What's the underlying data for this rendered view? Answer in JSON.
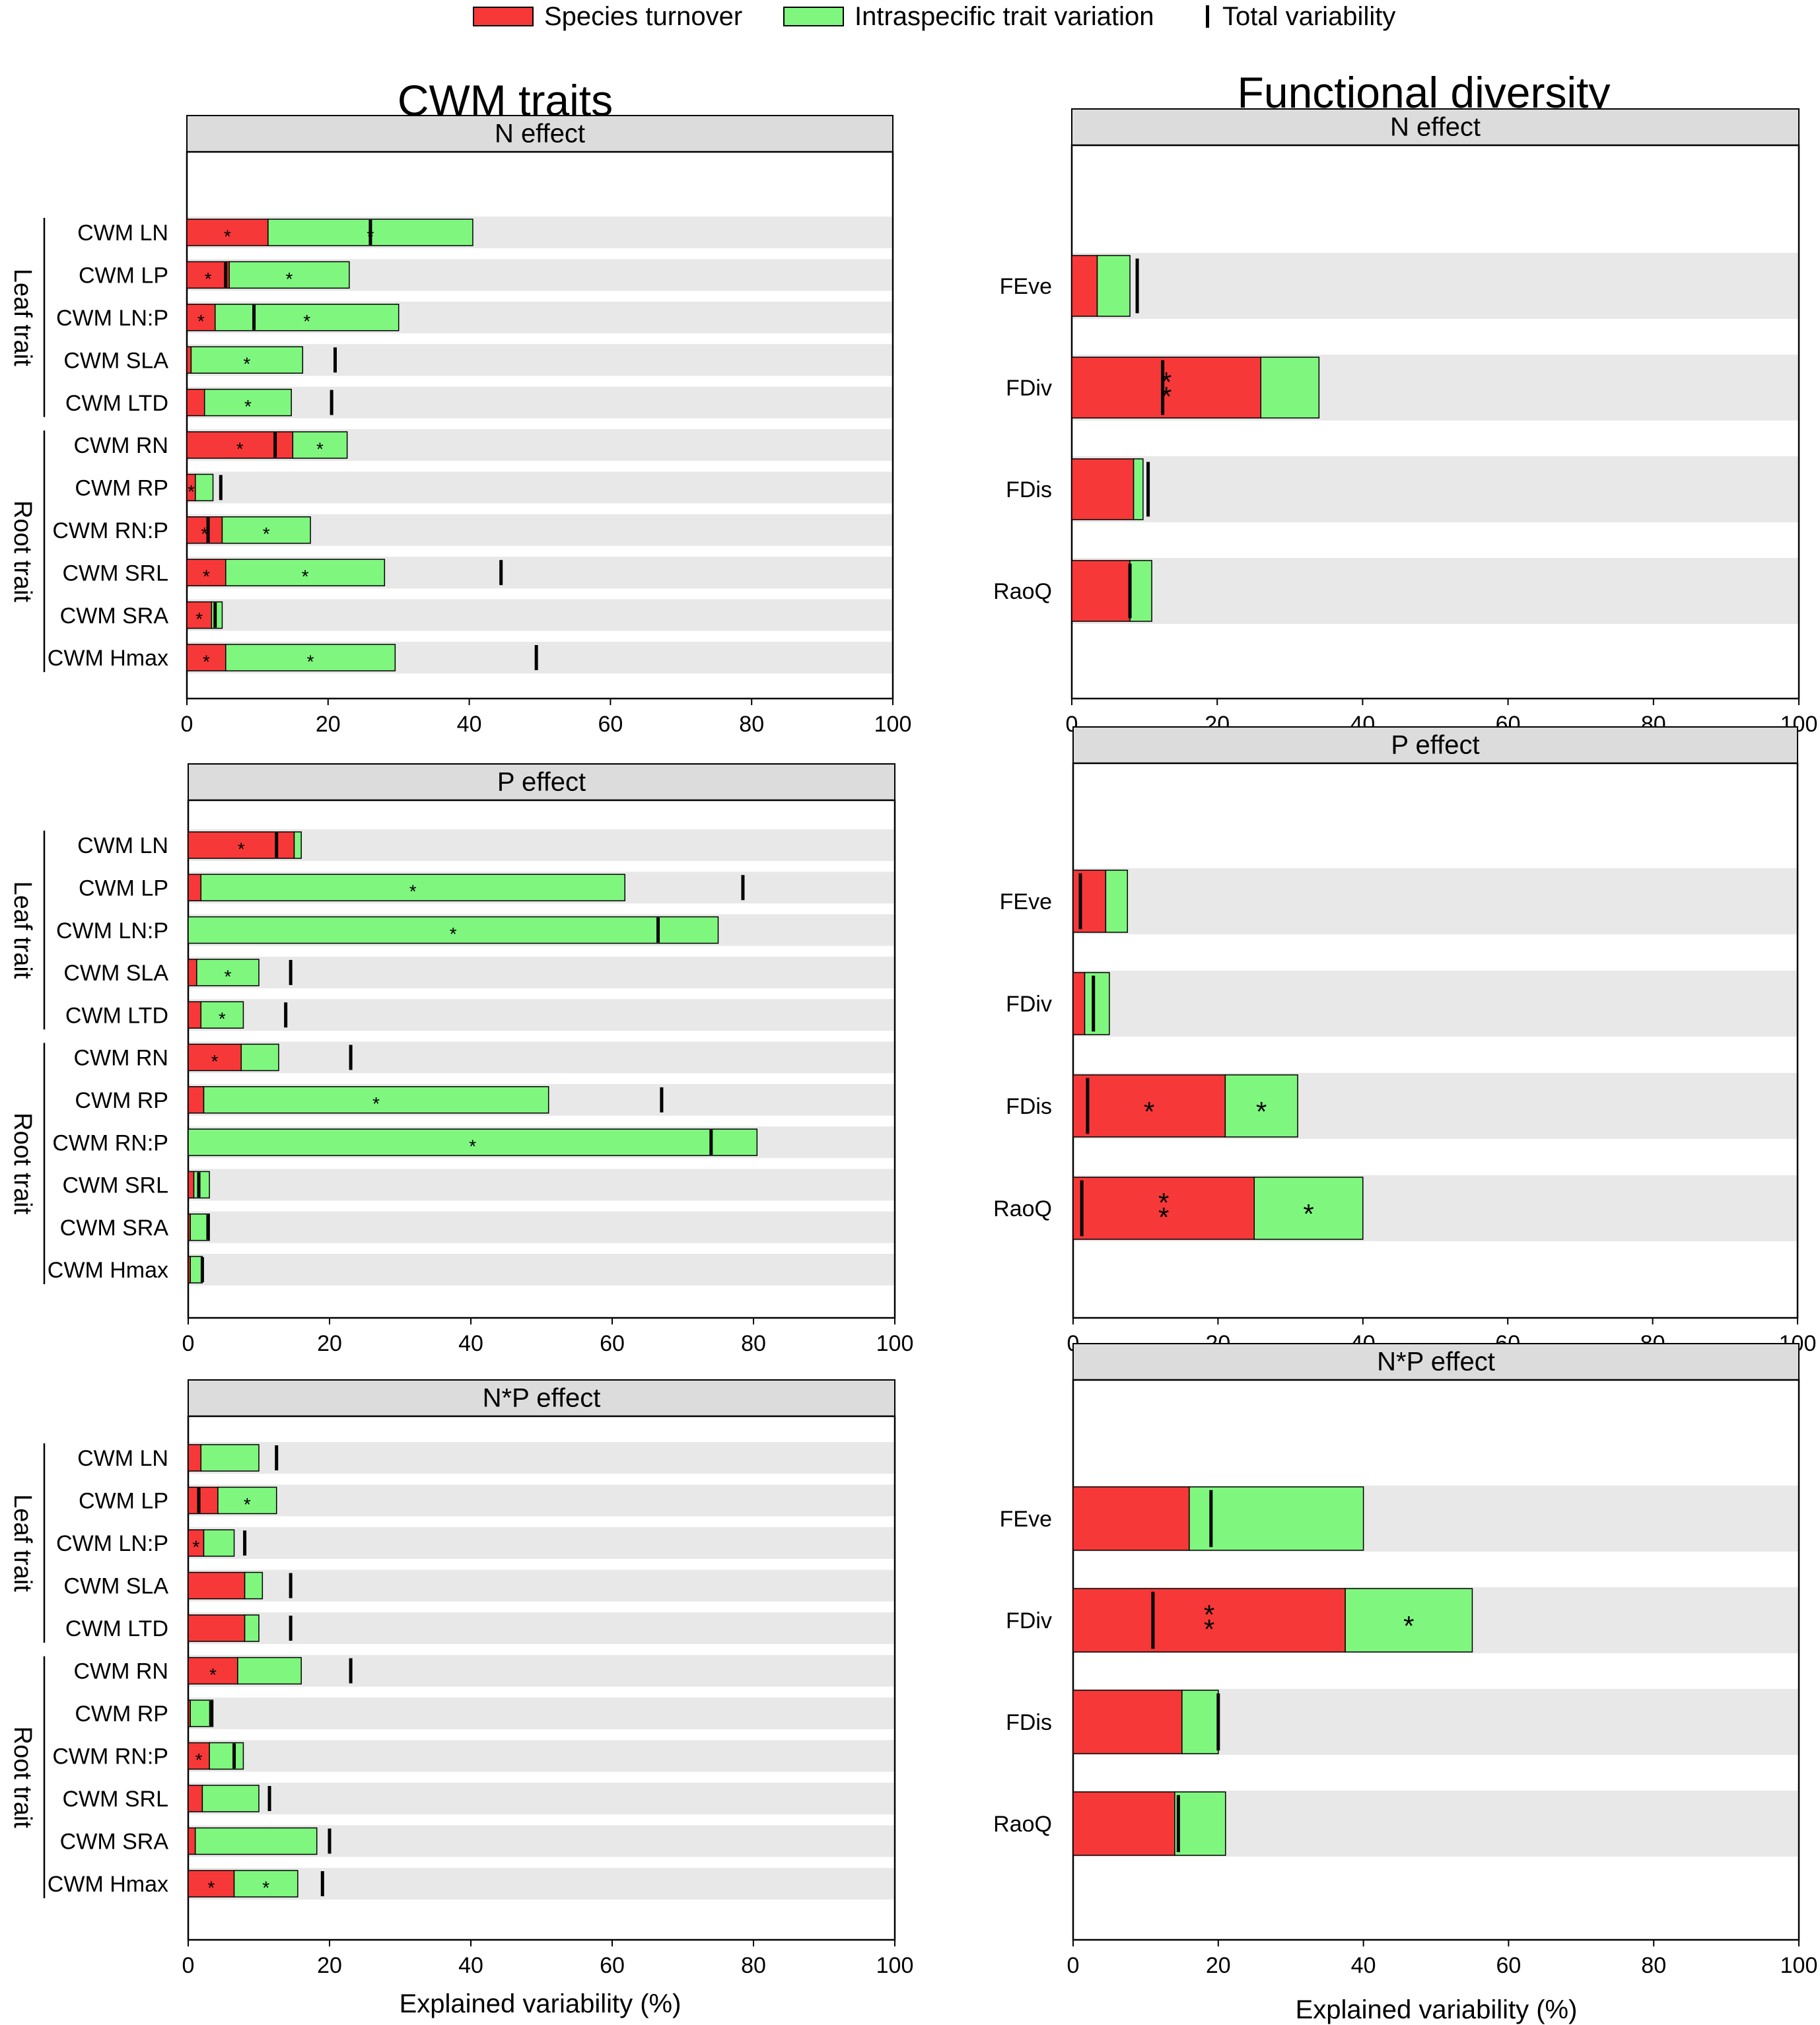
{
  "legend": {
    "turnover_label": "Species turnover",
    "itv_label": "Intraspecific trait variation",
    "total_label": "Total variability"
  },
  "colors": {
    "turnover": "#f73838",
    "itv": "#7ff77f",
    "row_bg": "#e8e8e8",
    "strip_bg": "#dcdcdc"
  },
  "column_titles": {
    "left": "CWM traits",
    "right": "Functional diversity"
  },
  "group_labels": {
    "leaf": "Leaf trait",
    "root": "Root trait"
  },
  "x_axis_label_left": "Explained variability (%)",
  "x_axis_label_right": "Explained variability (%)",
  "chart_data": [
    {
      "type": "bar",
      "stacked": true,
      "orientation": "horizontal",
      "title": "N effect",
      "column": "CWM traits",
      "xlabel": "",
      "xlim": [
        0,
        100
      ],
      "xticks": [
        "0",
        "20",
        "40",
        "60",
        "80",
        "100"
      ],
      "categories": [
        "CWM LN",
        "CWM LP",
        "CWM LN:P",
        "CWM SLA",
        "CWM LTD",
        "CWM RN",
        "CWM RP",
        "CWM RN:P",
        "CWM SRL",
        "CWM SRA",
        "CWM Hmax"
      ],
      "series": [
        {
          "name": "Species turnover",
          "values": [
            11.5,
            6,
            4,
            0.6,
            2.5,
            15,
            1.2,
            5,
            5.5,
            3.5,
            5.5
          ],
          "stars": [
            "*",
            "*",
            "*",
            "",
            "",
            "*",
            "*",
            "*",
            "*",
            "*",
            "*"
          ]
        },
        {
          "name": "Intraspecific trait variation",
          "values": [
            29,
            17,
            26,
            15.8,
            12.3,
            7.7,
            2.5,
            12.5,
            22.5,
            1.5,
            24
          ],
          "stars": [
            "*",
            "*",
            "*",
            "*",
            "*",
            "*",
            "",
            "*",
            "*",
            "",
            "*"
          ]
        }
      ],
      "total_variability": [
        26,
        5.5,
        9.5,
        21,
        20.5,
        12.5,
        4.8,
        3,
        44.5,
        4,
        49.5
      ]
    },
    {
      "type": "bar",
      "stacked": true,
      "orientation": "horizontal",
      "title": "P effect",
      "column": "CWM traits",
      "xlabel": "",
      "xlim": [
        0,
        100
      ],
      "xticks": [
        "0",
        "20",
        "40",
        "60",
        "80",
        "100"
      ],
      "categories": [
        "CWM LN",
        "CWM LP",
        "CWM LN:P",
        "CWM SLA",
        "CWM LTD",
        "CWM RN",
        "CWM RP",
        "CWM RN:P",
        "CWM SRL",
        "CWM SRA",
        "CWM Hmax"
      ],
      "series": [
        {
          "name": "Species turnover",
          "values": [
            15,
            1.8,
            0,
            1.2,
            1.8,
            7.5,
            2.2,
            0,
            0.8,
            0.3,
            0.3
          ],
          "stars": [
            "*",
            "",
            "",
            "",
            "",
            "*",
            "",
            "",
            "",
            "",
            ""
          ]
        },
        {
          "name": "Intraspecific trait variation",
          "values": [
            1,
            60,
            75,
            8.8,
            6,
            5.3,
            48.8,
            80.5,
            2.2,
            2.7,
            1.7
          ],
          "stars": [
            "",
            "*",
            "*",
            "*",
            "*",
            "",
            "*",
            "*",
            "",
            "",
            ""
          ]
        }
      ],
      "total_variability": [
        12.5,
        78.5,
        66.5,
        14.5,
        13.8,
        23,
        67,
        74,
        1.5,
        2.8,
        2
      ]
    },
    {
      "type": "bar",
      "stacked": true,
      "orientation": "horizontal",
      "title": "N*P effect",
      "column": "CWM traits",
      "xlabel": "Explained variability (%)",
      "xlim": [
        0,
        100
      ],
      "xticks": [
        "0",
        "20",
        "40",
        "60",
        "80",
        "100"
      ],
      "categories": [
        "CWM LN",
        "CWM LP",
        "CWM LN:P",
        "CWM SLA",
        "CWM LTD",
        "CWM RN",
        "CWM RP",
        "CWM RN:P",
        "CWM SRL",
        "CWM SRA",
        "CWM Hmax"
      ],
      "series": [
        {
          "name": "Species turnover",
          "values": [
            1.8,
            4.2,
            2.2,
            8,
            8,
            7,
            0.3,
            3,
            2,
            1,
            6.5
          ],
          "stars": [
            "",
            "",
            "*",
            "",
            "",
            "*",
            "",
            "*",
            "",
            "",
            "*"
          ]
        },
        {
          "name": "Intraspecific trait variation",
          "values": [
            8.2,
            8.3,
            4.3,
            2.5,
            2,
            9,
            3.2,
            4.8,
            8,
            17.2,
            9
          ],
          "stars": [
            "",
            "*",
            "",
            "",
            "",
            "",
            "",
            "",
            "",
            "",
            "*"
          ]
        }
      ],
      "total_variability": [
        12.5,
        1.5,
        8,
        14.5,
        14.5,
        23,
        3.2,
        6.5,
        11.5,
        20,
        19
      ]
    },
    {
      "type": "bar",
      "stacked": true,
      "orientation": "horizontal",
      "title": "N effect",
      "column": "Functional diversity",
      "xlabel": "",
      "xlim": [
        0,
        100
      ],
      "xticks": [
        "0",
        "20",
        "40",
        "60",
        "80",
        "100"
      ],
      "categories": [
        "FEve",
        "FDiv",
        "FDis",
        "RaoQ"
      ],
      "series": [
        {
          "name": "Species turnover",
          "values": [
            3.5,
            26,
            8.5,
            8
          ],
          "stars": [
            "",
            "**",
            "",
            ""
          ]
        },
        {
          "name": "Intraspecific trait variation",
          "values": [
            4.5,
            8,
            1.3,
            3
          ],
          "stars": [
            "",
            "",
            "",
            ""
          ]
        }
      ],
      "total_variability": [
        9,
        12.5,
        10.5,
        8
      ]
    },
    {
      "type": "bar",
      "stacked": true,
      "orientation": "horizontal",
      "title": "P effect",
      "column": "Functional diversity",
      "xlabel": "",
      "xlim": [
        0,
        100
      ],
      "xticks": [
        "0",
        "20",
        "40",
        "60",
        "80",
        "100"
      ],
      "categories": [
        "FEve",
        "FDiv",
        "FDis",
        "RaoQ"
      ],
      "series": [
        {
          "name": "Species turnover",
          "values": [
            4.5,
            1.6,
            21,
            25
          ],
          "stars": [
            "",
            "",
            "*",
            "**"
          ]
        },
        {
          "name": "Intraspecific trait variation",
          "values": [
            3,
            3.4,
            10,
            15
          ],
          "stars": [
            "",
            "",
            "*",
            "*"
          ]
        }
      ],
      "total_variability": [
        1,
        2.8,
        2,
        1.2
      ]
    },
    {
      "type": "bar",
      "stacked": true,
      "orientation": "horizontal",
      "title": "N*P effect",
      "column": "Functional diversity",
      "xlabel": "Explained variability (%)",
      "xlim": [
        0,
        100
      ],
      "xticks": [
        "0",
        "20",
        "40",
        "60",
        "80",
        "100"
      ],
      "categories": [
        "FEve",
        "FDiv",
        "FDis",
        "RaoQ"
      ],
      "series": [
        {
          "name": "Species turnover",
          "values": [
            16,
            37.5,
            15,
            14
          ],
          "stars": [
            "",
            "**",
            "",
            ""
          ]
        },
        {
          "name": "Intraspecific trait variation",
          "values": [
            24,
            17.5,
            5,
            7
          ],
          "stars": [
            "",
            "*",
            "",
            ""
          ]
        }
      ],
      "total_variability": [
        19,
        11,
        20,
        14.5
      ]
    }
  ]
}
